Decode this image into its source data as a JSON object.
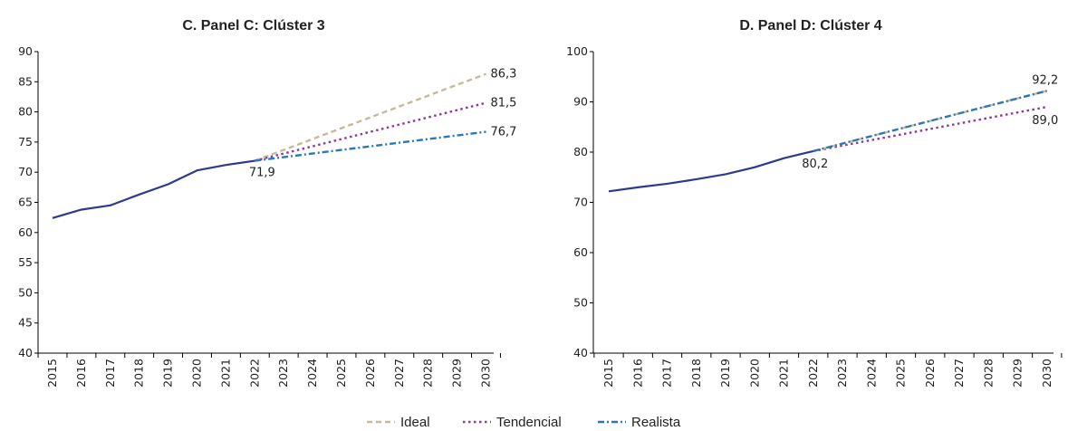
{
  "legend": {
    "items": [
      {
        "label": "Ideal",
        "color": "#c9b99a",
        "dash": "dashed"
      },
      {
        "label": "Tendencial",
        "color": "#8b3a98",
        "dash": "dotted"
      },
      {
        "label": "Realista",
        "color": "#2a78b8",
        "dash": "dash-dot"
      }
    ]
  },
  "colors": {
    "historical": "#2e3a8c",
    "axis": "#000000"
  },
  "chart_data": [
    {
      "type": "line",
      "title": "C. Panel C: Clúster 3",
      "x": [
        "2015",
        "2016",
        "2017",
        "2018",
        "2019",
        "2020",
        "2021",
        "2022",
        "2023",
        "2024",
        "2025",
        "2026",
        "2027",
        "2028",
        "2029",
        "2030"
      ],
      "ylim": [
        40,
        90
      ],
      "yticks": [
        40,
        45,
        50,
        55,
        60,
        65,
        70,
        75,
        80,
        85,
        90
      ],
      "grid": false,
      "historical": [
        62.4,
        63.8,
        64.5,
        66.3,
        68.0,
        70.3,
        71.2,
        71.9
      ],
      "projections": {
        "start": "2022",
        "end": "2030",
        "start_value": 71.9,
        "Ideal": 86.3,
        "Tendencial": 81.5,
        "Realista": 76.7
      },
      "labels": {
        "start": "71,9",
        "Ideal": "86,3",
        "Tendencial": "81,5",
        "Realista": "76,7"
      }
    },
    {
      "type": "line",
      "title": "D. Panel D: Clúster 4",
      "x": [
        "2015",
        "2016",
        "2017",
        "2018",
        "2019",
        "2020",
        "2021",
        "2022",
        "2023",
        "2024",
        "2025",
        "2026",
        "2027",
        "2028",
        "2029",
        "2030"
      ],
      "ylim": [
        40,
        100
      ],
      "yticks": [
        40,
        50,
        60,
        70,
        80,
        90,
        100
      ],
      "grid": false,
      "historical": [
        72.2,
        73.0,
        73.7,
        74.6,
        75.6,
        77.0,
        78.8,
        80.2
      ],
      "projections": {
        "start": "2022",
        "end": "2030",
        "start_value": 80.2,
        "Ideal": 92.2,
        "Tendencial": 89.0,
        "Realista": 92.2
      },
      "labels": {
        "start": "80,2",
        "Ideal_Realista": "92,2",
        "Tendencial": "89,0"
      }
    }
  ]
}
